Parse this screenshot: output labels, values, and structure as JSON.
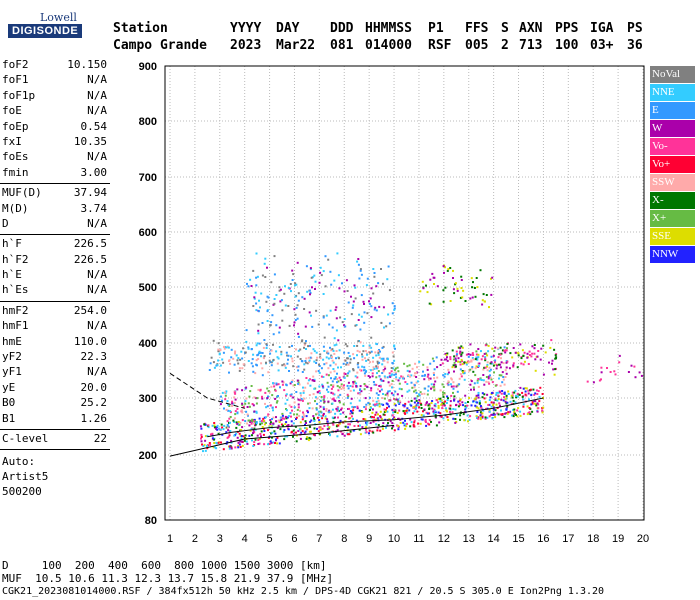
{
  "logo": {
    "line1": "Lowell",
    "line2": "DIGISONDE"
  },
  "header": {
    "station_label": "Station",
    "station_value": "Campo Grande",
    "yyyy_label": "YYYY",
    "yyyy_value": "2023",
    "day_label": "DAY",
    "day_value": "Mar22",
    "ddd_label": "DDD",
    "ddd_value": "081",
    "time_label": "HHMMSS",
    "time_value": "014000",
    "p1_label": "P1",
    "p1_value": "RSF",
    "ffs_label": "FFS",
    "ffs_value": "005",
    "s_label": "S",
    "s_value": "2",
    "axn_label": "AXN",
    "axn_value": "713",
    "pps_label": "PPS",
    "pps_value": "100",
    "iga_label": "IGA",
    "iga_value": "03+",
    "ps_label": "PS",
    "ps_value": "36"
  },
  "params": {
    "g1": [
      {
        "k": "foF2",
        "v": "10.150"
      },
      {
        "k": "foF1",
        "v": "N/A"
      },
      {
        "k": "foF1p",
        "v": "N/A"
      },
      {
        "k": "foE",
        "v": "N/A"
      },
      {
        "k": "foEp",
        "v": "0.54"
      },
      {
        "k": "fxI",
        "v": "10.35"
      },
      {
        "k": "foEs",
        "v": "N/A"
      },
      {
        "k": "fmin",
        "v": "3.00"
      }
    ],
    "g2": [
      {
        "k": "MUF(D)",
        "v": "37.94"
      },
      {
        "k": "M(D)",
        "v": "3.74"
      },
      {
        "k": "D",
        "v": "N/A"
      }
    ],
    "g3": [
      {
        "k": "h`F",
        "v": "226.5"
      },
      {
        "k": "h`F2",
        "v": "226.5"
      },
      {
        "k": "h`E",
        "v": "N/A"
      },
      {
        "k": "h`Es",
        "v": "N/A"
      }
    ],
    "g4": [
      {
        "k": "hmF2",
        "v": "254.0"
      },
      {
        "k": "hmF1",
        "v": "N/A"
      },
      {
        "k": "hmE",
        "v": "110.0"
      },
      {
        "k": "yF2",
        "v": "22.3"
      },
      {
        "k": "yF1",
        "v": "N/A"
      },
      {
        "k": "yE",
        "v": "20.0"
      },
      {
        "k": "B0",
        "v": "25.2"
      },
      {
        "k": "B1",
        "v": "1.26"
      }
    ],
    "g5": [
      {
        "k": "C-level",
        "v": "22"
      }
    ]
  },
  "auto": {
    "l1": "Auto:",
    "l2": "Artist5",
    "l3": "500200"
  },
  "legend": [
    {
      "label": "NoVal",
      "color": "#808080"
    },
    {
      "label": "NNE",
      "color": "#33ccff"
    },
    {
      "label": "E",
      "color": "#3399ff"
    },
    {
      "label": "W",
      "color": "#aa00aa"
    },
    {
      "label": "Vo-",
      "color": "#ff3399"
    },
    {
      "label": "Vo+",
      "color": "#ff0033"
    },
    {
      "label": "SSW",
      "color": "#ffaaaa"
    },
    {
      "label": "X-",
      "color": "#007700"
    },
    {
      "label": "X+",
      "color": "#66bb44"
    },
    {
      "label": "SSE",
      "color": "#dddd00"
    },
    {
      "label": "NNW",
      "color": "#2222ff"
    }
  ],
  "footer": {
    "d_row": "D     100  200  400  600  800 1000 1500 3000 [km]",
    "muf_row": "MUF  10.5 10.6 11.3 12.3 13.7 15.8 21.9 37.9 [MHz]",
    "info_row": "CGK21_2023081014000.RSF / 384fx512h 50 kHz 2.5 km / DPS-4D CGK21 821 / 20.5 S 305.0 E Ion2Png 1.3.20"
  },
  "chart_data": {
    "type": "scatter",
    "xlim": [
      1,
      20
    ],
    "ylim": [
      80,
      900
    ],
    "xticks": [
      "1",
      "2",
      "3",
      "4",
      "5",
      "6",
      "7",
      "8",
      "9",
      "10",
      "11",
      "12",
      "13",
      "14",
      "15",
      "16",
      "17",
      "18",
      "19",
      "20"
    ],
    "yticks": [
      "80",
      "200",
      "300",
      "400",
      "500",
      "600",
      "700",
      "800",
      "900"
    ],
    "grid": true,
    "profile_lower": [
      [
        1,
        198
      ],
      [
        4,
        228
      ],
      [
        7,
        238
      ],
      [
        10,
        252
      ]
    ],
    "profile_upper_dashed": [
      [
        1,
        345
      ],
      [
        2.5,
        300
      ],
      [
        4,
        282
      ]
    ],
    "trace_main": [
      [
        2.5,
        232
      ],
      [
        3.5,
        240
      ],
      [
        5,
        248
      ],
      [
        6.5,
        252
      ],
      [
        8,
        258
      ],
      [
        10,
        262
      ],
      [
        12,
        270
      ],
      [
        14,
        282
      ],
      [
        16,
        300
      ]
    ]
  }
}
